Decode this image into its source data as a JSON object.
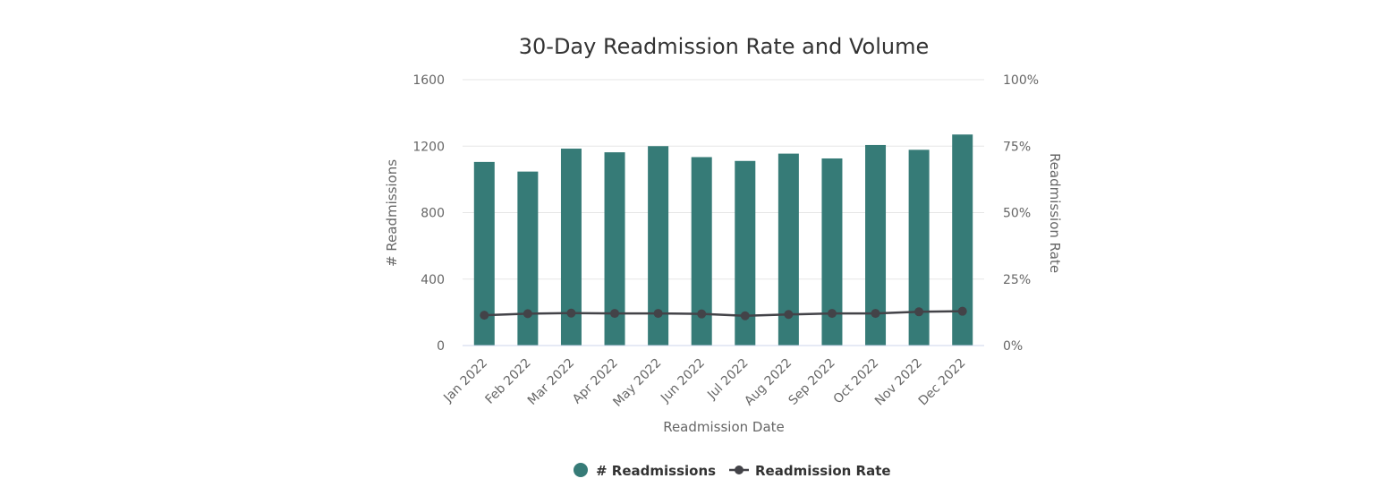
{
  "chart_data": {
    "type": "bar",
    "title": "30-Day Readmission Rate and Volume",
    "xlabel": "Readmission Date",
    "ylabel": "# Readmissions",
    "y2label": "Readmission Rate",
    "categories": [
      "Jan 2022",
      "Feb 2022",
      "Mar 2022",
      "Apr 2022",
      "May 2022",
      "Jun 2022",
      "Jul 2022",
      "Aug 2022",
      "Sep 2022",
      "Oct 2022",
      "Nov 2022",
      "Dec 2022"
    ],
    "ylim": [
      0,
      1600
    ],
    "yticks": [
      0,
      400,
      800,
      1200,
      1600
    ],
    "ytick_labels": [
      "0",
      "400",
      "800",
      "1200",
      "1600"
    ],
    "y2lim": [
      0,
      100
    ],
    "y2ticks": [
      0,
      25,
      50,
      75,
      100
    ],
    "y2tick_labels": [
      "0%",
      "25%",
      "50%",
      "75%",
      "100%"
    ],
    "grid": true,
    "legend_position": "bottom-center",
    "series": [
      {
        "name": "# Readmissions",
        "type": "bar",
        "axis": "left",
        "color": "#367b77",
        "values": [
          1105,
          1047,
          1185,
          1163,
          1200,
          1134,
          1111,
          1155,
          1126,
          1207,
          1178,
          1270
        ]
      },
      {
        "name": "Readmission Rate",
        "type": "line",
        "axis": "right",
        "color": "#434348",
        "values": [
          11.4,
          12.0,
          12.2,
          12.1,
          12.1,
          11.9,
          11.2,
          11.7,
          12.1,
          12.1,
          12.7,
          12.9
        ]
      }
    ]
  }
}
